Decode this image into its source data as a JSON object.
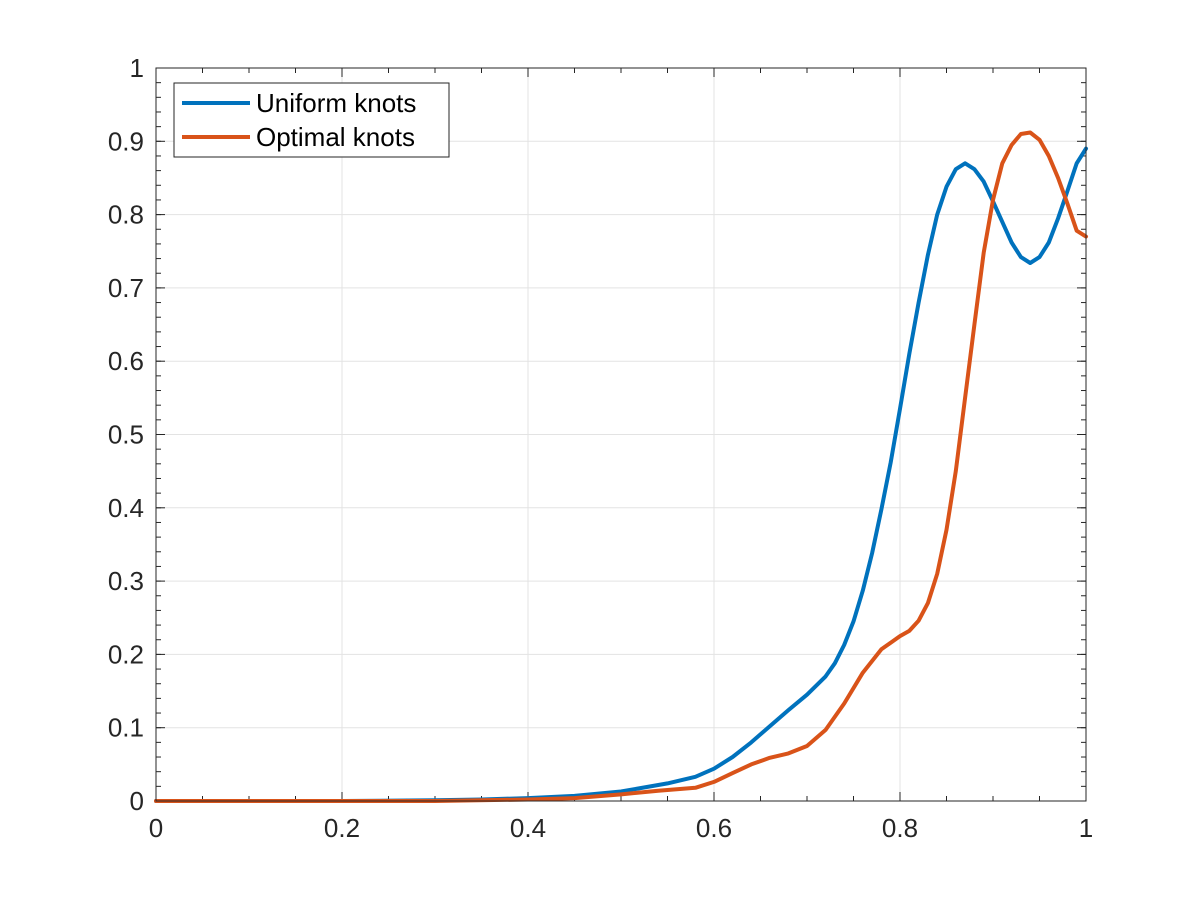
{
  "chart_data": {
    "type": "line",
    "title": "",
    "xlabel": "",
    "ylabel": "",
    "xlim": [
      0,
      1
    ],
    "ylim": [
      0,
      1
    ],
    "xticks": [
      0,
      0.2,
      0.4,
      0.6,
      0.8,
      1
    ],
    "xtick_labels": [
      "0",
      "0.2",
      "0.4",
      "0.6",
      "0.8",
      "1"
    ],
    "yticks": [
      0,
      0.1,
      0.2,
      0.3,
      0.4,
      0.5,
      0.6,
      0.7,
      0.8,
      0.9,
      1
    ],
    "ytick_labels": [
      "0",
      "0.1",
      "0.2",
      "0.3",
      "0.4",
      "0.5",
      "0.6",
      "0.7",
      "0.8",
      "0.9",
      "1"
    ],
    "grid": true,
    "minor_ticks": true,
    "legend": "top-left",
    "series": [
      {
        "name": "Uniform knots",
        "color": "#0072BD",
        "x": [
          0,
          0.1,
          0.2,
          0.3,
          0.35,
          0.4,
          0.45,
          0.5,
          0.55,
          0.58,
          0.6,
          0.62,
          0.64,
          0.66,
          0.68,
          0.7,
          0.72,
          0.73,
          0.74,
          0.75,
          0.76,
          0.77,
          0.78,
          0.79,
          0.8,
          0.81,
          0.82,
          0.83,
          0.84,
          0.85,
          0.86,
          0.87,
          0.88,
          0.89,
          0.9,
          0.91,
          0.92,
          0.93,
          0.94,
          0.95,
          0.96,
          0.97,
          0.98,
          0.99,
          1.0
        ],
        "y": [
          0,
          0,
          0,
          0.001,
          0.002,
          0.004,
          0.007,
          0.013,
          0.024,
          0.033,
          0.044,
          0.06,
          0.08,
          0.102,
          0.124,
          0.145,
          0.17,
          0.188,
          0.213,
          0.245,
          0.287,
          0.338,
          0.398,
          0.462,
          0.535,
          0.61,
          0.68,
          0.745,
          0.8,
          0.838,
          0.862,
          0.87,
          0.862,
          0.845,
          0.818,
          0.79,
          0.762,
          0.742,
          0.734,
          0.742,
          0.762,
          0.795,
          0.832,
          0.87,
          0.89
        ]
      },
      {
        "name": "Optimal knots",
        "color": "#D95319",
        "x": [
          0,
          0.1,
          0.2,
          0.3,
          0.4,
          0.45,
          0.5,
          0.54,
          0.58,
          0.6,
          0.62,
          0.64,
          0.66,
          0.68,
          0.7,
          0.72,
          0.74,
          0.76,
          0.78,
          0.8,
          0.81,
          0.82,
          0.83,
          0.84,
          0.85,
          0.86,
          0.87,
          0.88,
          0.89,
          0.9,
          0.91,
          0.92,
          0.93,
          0.94,
          0.95,
          0.96,
          0.97,
          0.98,
          0.99,
          1.0
        ],
        "y": [
          0,
          0,
          0,
          0,
          0.002,
          0.004,
          0.009,
          0.014,
          0.018,
          0.026,
          0.038,
          0.05,
          0.059,
          0.065,
          0.075,
          0.097,
          0.133,
          0.175,
          0.207,
          0.225,
          0.232,
          0.246,
          0.27,
          0.31,
          0.37,
          0.45,
          0.55,
          0.65,
          0.748,
          0.82,
          0.87,
          0.895,
          0.91,
          0.912,
          0.902,
          0.88,
          0.85,
          0.815,
          0.778,
          0.77
        ]
      }
    ]
  }
}
